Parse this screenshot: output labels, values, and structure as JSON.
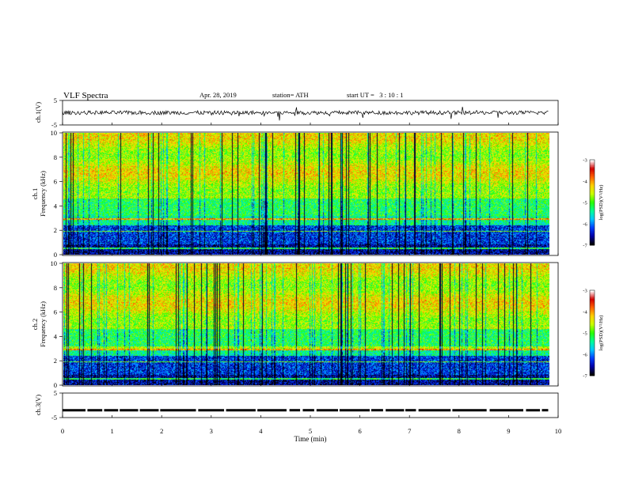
{
  "header": {
    "title": "VLF Spectra",
    "date": "Apr. 28, 2019",
    "station": "station= ATH",
    "start": "start UT =   3 : 10 : 1"
  },
  "chart_data": [
    {
      "type": "line",
      "name": "ch1-waveform",
      "ylabel": "ch.1(V)",
      "ylim": [
        -5,
        5
      ],
      "yticks": [
        "5",
        "-5"
      ],
      "xlim": [
        0,
        10
      ],
      "approx_level": 0
    },
    {
      "type": "heatmap",
      "name": "ch1-spectrogram",
      "ylabel": "ch.1\nFrequency (kHz)",
      "ylabel_top": "ch.1",
      "ylabel_bottom": "Frequency (kHz)",
      "ylim": [
        0,
        10
      ],
      "yticks": [
        "0",
        "2",
        "4",
        "6",
        "8",
        "10"
      ],
      "xlim": [
        0,
        9.8
      ],
      "colorbar": {
        "label": "log(PSD)(V²/Hz)",
        "range": [
          -7,
          -3
        ],
        "ticks": [
          "-3",
          "-4",
          "-5",
          "-6",
          "-7"
        ]
      }
    },
    {
      "type": "heatmap",
      "name": "ch2-spectrogram",
      "ylabel_top": "ch.2",
      "ylabel_bottom": "Frequency (kHz)",
      "ylim": [
        0,
        10
      ],
      "yticks": [
        "0",
        "2",
        "4",
        "6",
        "8",
        "10"
      ],
      "xlim": [
        0,
        9.8
      ],
      "colorbar": {
        "label": "log(PSD)(V²/Hz)",
        "range": [
          -7,
          -3
        ],
        "ticks": [
          "-3",
          "-4",
          "-5",
          "-6",
          "-7"
        ]
      }
    },
    {
      "type": "line",
      "name": "ch3-waveform",
      "ylabel": "ch.3(V)",
      "ylim": [
        -5,
        5
      ],
      "yticks": [
        "5",
        "-5"
      ],
      "xlim": [
        0,
        10
      ],
      "approx_level": -2
    }
  ],
  "xaxis": {
    "label": "Time (min)",
    "range": [
      0,
      10
    ],
    "ticks": [
      "0",
      "1",
      "2",
      "3",
      "4",
      "5",
      "6",
      "7",
      "8",
      "9",
      "10"
    ]
  },
  "colors": {
    "trace": "#000000",
    "spectral_scale": [
      "#000000",
      "#0000a8",
      "#0040ff",
      "#00c8ff",
      "#00ff96",
      "#28ff00",
      "#c8ff00",
      "#ffd200",
      "#ff6400",
      "#d20000",
      "#ffffff"
    ]
  }
}
